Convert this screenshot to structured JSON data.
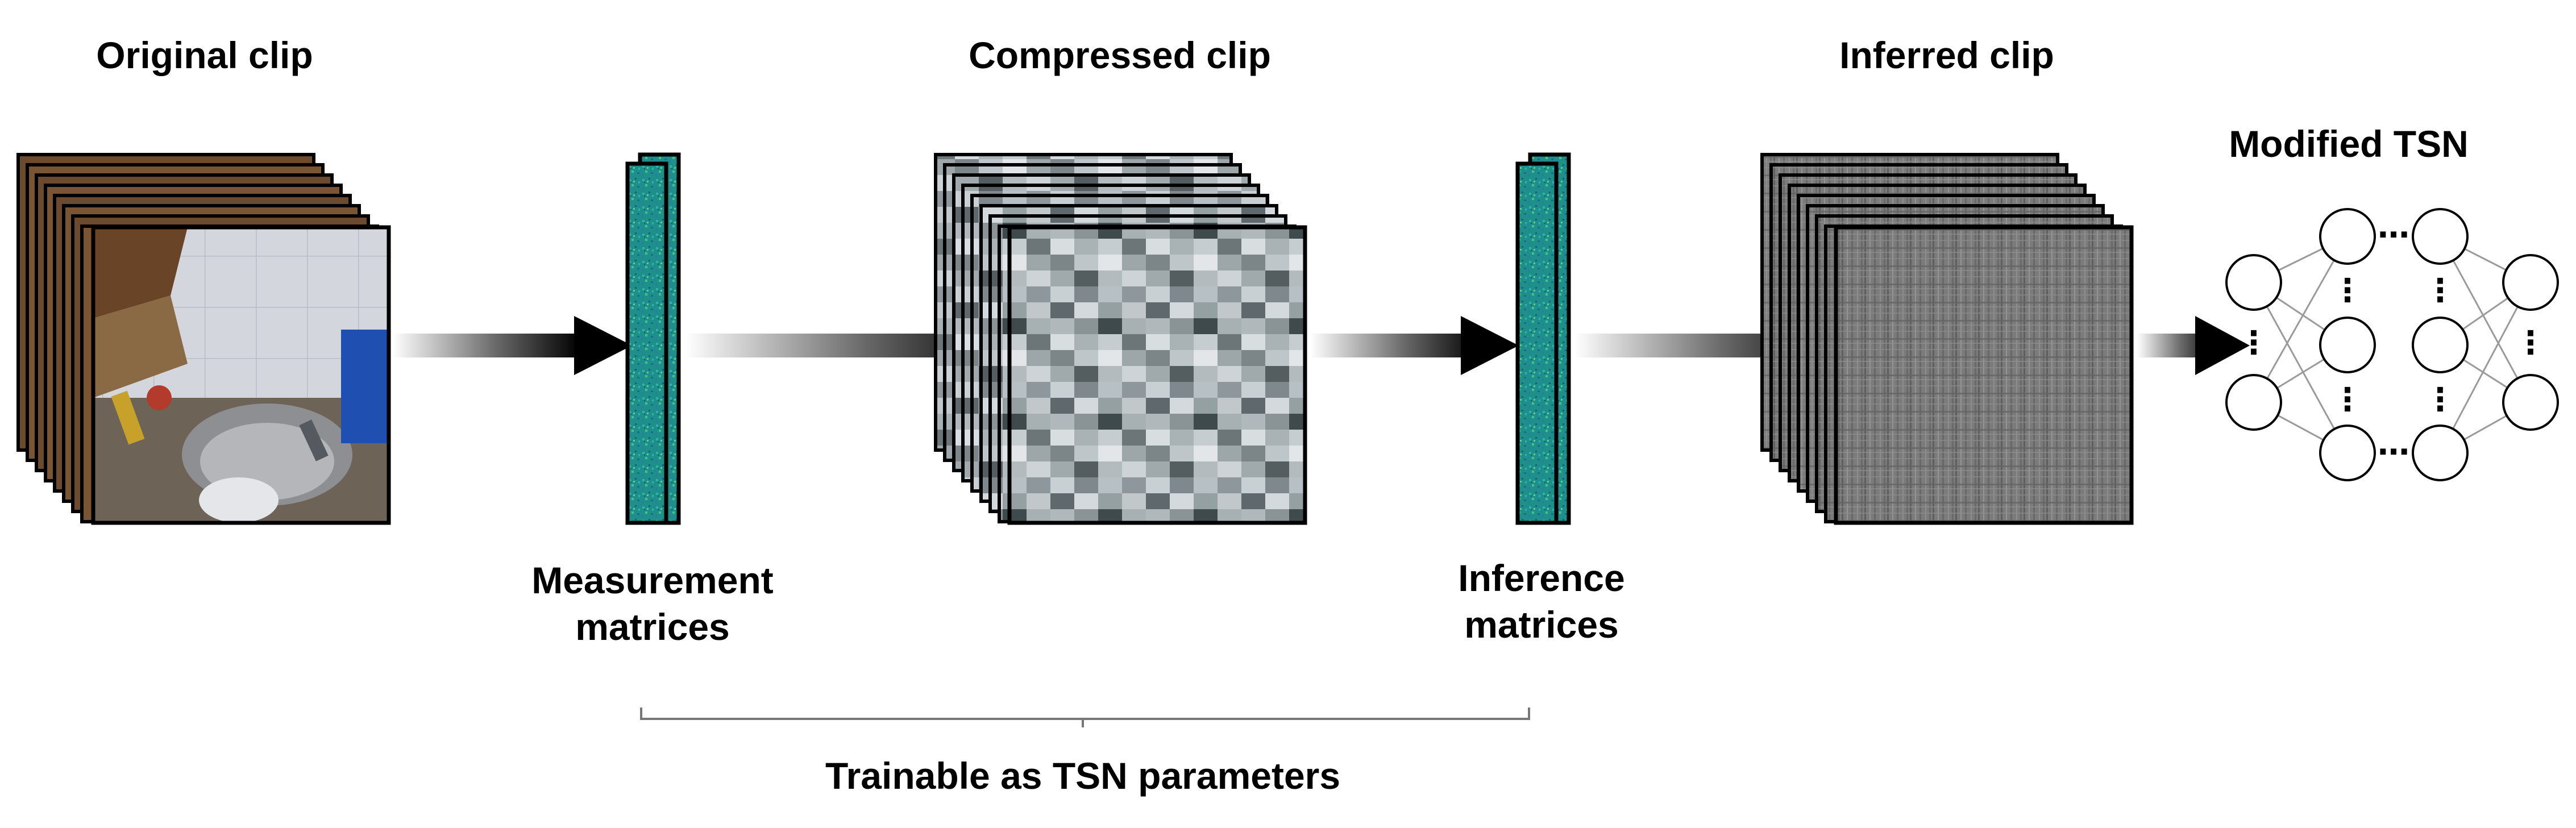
{
  "labels": {
    "original_clip": "Original clip",
    "compressed_clip": "Compressed clip",
    "inferred_clip": "Inferred clip",
    "modified_tsn": "Modified TSN",
    "measurement_line1": "Measurement",
    "measurement_line2": "matrices",
    "inference_line1": "Inference",
    "inference_line2": "matrices",
    "trainable": "Trainable as TSN parameters"
  },
  "colors": {
    "matrix_teal": "#1f8f8c",
    "arrow": "#000000",
    "frame_border": "#000000",
    "compressed_gray": "#9aa3a8",
    "inferred_gray": "#7a7a7a"
  },
  "network": {
    "layers": 4,
    "ellipsis": "⋯",
    "vertical_ellipsis": "⋮"
  }
}
